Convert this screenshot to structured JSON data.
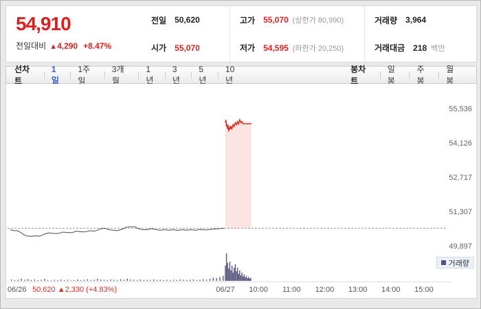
{
  "quote": {
    "price": "54,910",
    "change_label": "전일대비",
    "change_arrow": "▲",
    "change_value": "4,290",
    "change_percent": "+8.47%",
    "stats": [
      {
        "label": "전일",
        "value": "50,620",
        "extra": ""
      },
      {
        "label": "고가",
        "value": "55,070",
        "extra": "(상한가 80,990)"
      },
      {
        "label": "거래량",
        "value": "3,964",
        "extra": ""
      },
      {
        "label": "시가",
        "value": "55,070",
        "extra": ""
      },
      {
        "label": "저가",
        "value": "54,595",
        "extra": "(하한가 20,250)"
      },
      {
        "label": "거래대금",
        "value": "218",
        "extra": "백만"
      }
    ]
  },
  "toolbar": {
    "line_chart_label": "선차트",
    "periods": [
      {
        "label": "1일",
        "selected": true
      },
      {
        "label": "1주일",
        "selected": false
      },
      {
        "label": "3개월",
        "selected": false
      },
      {
        "label": "1년",
        "selected": false
      },
      {
        "label": "3년",
        "selected": false
      },
      {
        "label": "5년",
        "selected": false
      },
      {
        "label": "10년",
        "selected": false
      }
    ],
    "candle_chart_label": "봉차트",
    "candle_periods": [
      {
        "label": "일봉"
      },
      {
        "label": "주봉"
      },
      {
        "label": "월봉"
      }
    ]
  },
  "chart_data": {
    "type": "line",
    "title": "1-day intraday price chart with volume",
    "y_ticks": [
      55536,
      54126,
      52717,
      51307,
      49897
    ],
    "ylim": [
      49600,
      55800
    ],
    "prev_close": 50620,
    "session_minutes": 780,
    "x_axis": [
      {
        "t": 0,
        "label": "06/26"
      },
      {
        "t": 390,
        "label": "06/27"
      },
      {
        "t": 450,
        "label": "10:00"
      },
      {
        "t": 510,
        "label": "11:00"
      },
      {
        "t": 570,
        "label": "12:00"
      },
      {
        "t": 630,
        "label": "13:00"
      },
      {
        "t": 690,
        "label": "14:00"
      },
      {
        "t": 750,
        "label": "15:00"
      }
    ],
    "prev_day_series": [
      [
        0,
        50560
      ],
      [
        6,
        50520
      ],
      [
        12,
        50520
      ],
      [
        18,
        50460
      ],
      [
        24,
        50360
      ],
      [
        30,
        50300
      ],
      [
        38,
        50290
      ],
      [
        46,
        50310
      ],
      [
        52,
        50290
      ],
      [
        58,
        50340
      ],
      [
        64,
        50400
      ],
      [
        72,
        50430
      ],
      [
        80,
        50400
      ],
      [
        88,
        50410
      ],
      [
        96,
        50460
      ],
      [
        104,
        50440
      ],
      [
        112,
        50440
      ],
      [
        120,
        50500
      ],
      [
        128,
        50470
      ],
      [
        136,
        50470
      ],
      [
        144,
        50520
      ],
      [
        152,
        50500
      ],
      [
        158,
        50540
      ],
      [
        164,
        50600
      ],
      [
        172,
        50620
      ],
      [
        178,
        50560
      ],
      [
        186,
        50540
      ],
      [
        194,
        50520
      ],
      [
        202,
        50570
      ],
      [
        210,
        50660
      ],
      [
        218,
        50680
      ],
      [
        226,
        50680
      ],
      [
        232,
        50600
      ],
      [
        240,
        50560
      ],
      [
        248,
        50560
      ],
      [
        256,
        50600
      ],
      [
        264,
        50560
      ],
      [
        272,
        50540
      ],
      [
        280,
        50560
      ],
      [
        288,
        50540
      ],
      [
        296,
        50560
      ],
      [
        304,
        50530
      ],
      [
        312,
        50560
      ],
      [
        320,
        50540
      ],
      [
        328,
        50560
      ],
      [
        336,
        50540
      ],
      [
        344,
        50570
      ],
      [
        352,
        50550
      ],
      [
        360,
        50560
      ],
      [
        368,
        50580
      ],
      [
        376,
        50600
      ],
      [
        382,
        50610
      ],
      [
        388,
        50620
      ]
    ],
    "today_series": [
      [
        390,
        54950
      ],
      [
        391,
        55070
      ],
      [
        392,
        54800
      ],
      [
        393,
        54900
      ],
      [
        394,
        54700
      ],
      [
        395,
        54850
      ],
      [
        396,
        54595
      ],
      [
        397,
        54750
      ],
      [
        398,
        54680
      ],
      [
        399,
        54820
      ],
      [
        400,
        54700
      ],
      [
        401,
        54800
      ],
      [
        402,
        54720
      ],
      [
        404,
        54880
      ],
      [
        406,
        54800
      ],
      [
        408,
        54950
      ],
      [
        410,
        54870
      ],
      [
        412,
        55000
      ],
      [
        414,
        54900
      ],
      [
        416,
        55070
      ],
      [
        418,
        54960
      ],
      [
        420,
        55000
      ],
      [
        422,
        54910
      ],
      [
        437,
        54910
      ]
    ],
    "volume_series": [
      [
        2,
        5
      ],
      [
        8,
        3
      ],
      [
        14,
        4
      ],
      [
        20,
        8
      ],
      [
        26,
        4
      ],
      [
        32,
        6
      ],
      [
        38,
        3
      ],
      [
        44,
        5
      ],
      [
        50,
        3
      ],
      [
        56,
        4
      ],
      [
        62,
        7
      ],
      [
        68,
        3
      ],
      [
        74,
        2
      ],
      [
        80,
        4
      ],
      [
        86,
        3
      ],
      [
        92,
        5
      ],
      [
        98,
        3
      ],
      [
        104,
        4
      ],
      [
        110,
        2
      ],
      [
        116,
        3
      ],
      [
        122,
        5
      ],
      [
        128,
        3
      ],
      [
        134,
        4
      ],
      [
        140,
        6
      ],
      [
        146,
        3
      ],
      [
        152,
        4
      ],
      [
        158,
        8
      ],
      [
        164,
        5
      ],
      [
        170,
        4
      ],
      [
        176,
        3
      ],
      [
        182,
        5
      ],
      [
        188,
        4
      ],
      [
        194,
        3
      ],
      [
        200,
        6
      ],
      [
        206,
        4
      ],
      [
        212,
        8
      ],
      [
        218,
        5
      ],
      [
        224,
        4
      ],
      [
        230,
        3
      ],
      [
        236,
        5
      ],
      [
        242,
        3
      ],
      [
        248,
        4
      ],
      [
        254,
        3
      ],
      [
        260,
        5
      ],
      [
        266,
        3
      ],
      [
        272,
        4
      ],
      [
        278,
        3
      ],
      [
        284,
        4
      ],
      [
        290,
        3
      ],
      [
        296,
        4
      ],
      [
        302,
        3
      ],
      [
        308,
        5
      ],
      [
        314,
        4
      ],
      [
        320,
        3
      ],
      [
        326,
        4
      ],
      [
        332,
        5
      ],
      [
        338,
        3
      ],
      [
        344,
        4
      ],
      [
        350,
        6
      ],
      [
        356,
        4
      ],
      [
        362,
        8
      ],
      [
        368,
        12
      ],
      [
        374,
        10
      ],
      [
        380,
        14
      ],
      [
        386,
        18
      ],
      [
        390,
        55
      ],
      [
        392,
        100
      ],
      [
        394,
        65
      ],
      [
        396,
        45
      ],
      [
        398,
        70
      ],
      [
        400,
        38
      ],
      [
        402,
        55
      ],
      [
        404,
        30
      ],
      [
        406,
        48
      ],
      [
        408,
        60
      ],
      [
        410,
        35
      ],
      [
        412,
        48
      ],
      [
        414,
        26
      ],
      [
        416,
        38
      ],
      [
        418,
        20
      ],
      [
        420,
        30
      ],
      [
        422,
        16
      ],
      [
        424,
        24
      ],
      [
        426,
        13
      ],
      [
        428,
        18
      ],
      [
        430,
        10
      ],
      [
        432,
        14
      ],
      [
        434,
        8
      ],
      [
        436,
        11
      ]
    ],
    "volume_legend": "거래량",
    "prev_day_summary": {
      "date": "06/26",
      "text": "50,620 ▲2,330 (+4.83%)"
    },
    "colors": {
      "prev_line": "#4a4a4a",
      "today_line": "#dd2a20",
      "today_fill": "#fbe4e4",
      "prev_close_line": "#999999",
      "volume_bar": "#55517a",
      "axis_text": "#555555",
      "tick_text": "#666666"
    },
    "legend_position": "bottom-right",
    "grid": false
  }
}
